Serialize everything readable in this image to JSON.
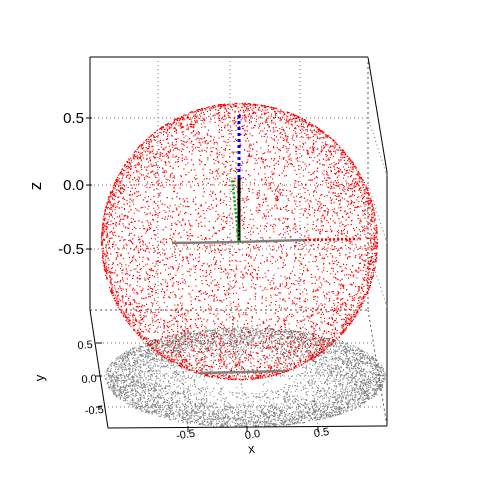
{
  "chart_data": {
    "type": "scatter",
    "projection": "3d",
    "title": "",
    "xlabel": "x",
    "ylabel": "y",
    "zlabel": "z",
    "xlim": [
      -1,
      1
    ],
    "ylim": [
      -1,
      1
    ],
    "zlim": [
      -1,
      1
    ],
    "grid": true,
    "x_ticks": [
      "-0.5",
      "0.0",
      "0.5"
    ],
    "y_ticks": [
      "0.5",
      "0.0",
      "-0.5"
    ],
    "z_ticks": [
      "0.5",
      "0.0",
      "-0.5"
    ],
    "series": [
      {
        "color": "#ff0000",
        "shape": "unit sphere surface",
        "radius": 1
      },
      {
        "color": "#808080",
        "shape": "projection onto z = -1 plane",
        "radius": 1
      }
    ],
    "axis_glyph": {
      "x_color": "#ff0000",
      "y_color": "#00aa00",
      "z_color": "#0000ff"
    }
  }
}
